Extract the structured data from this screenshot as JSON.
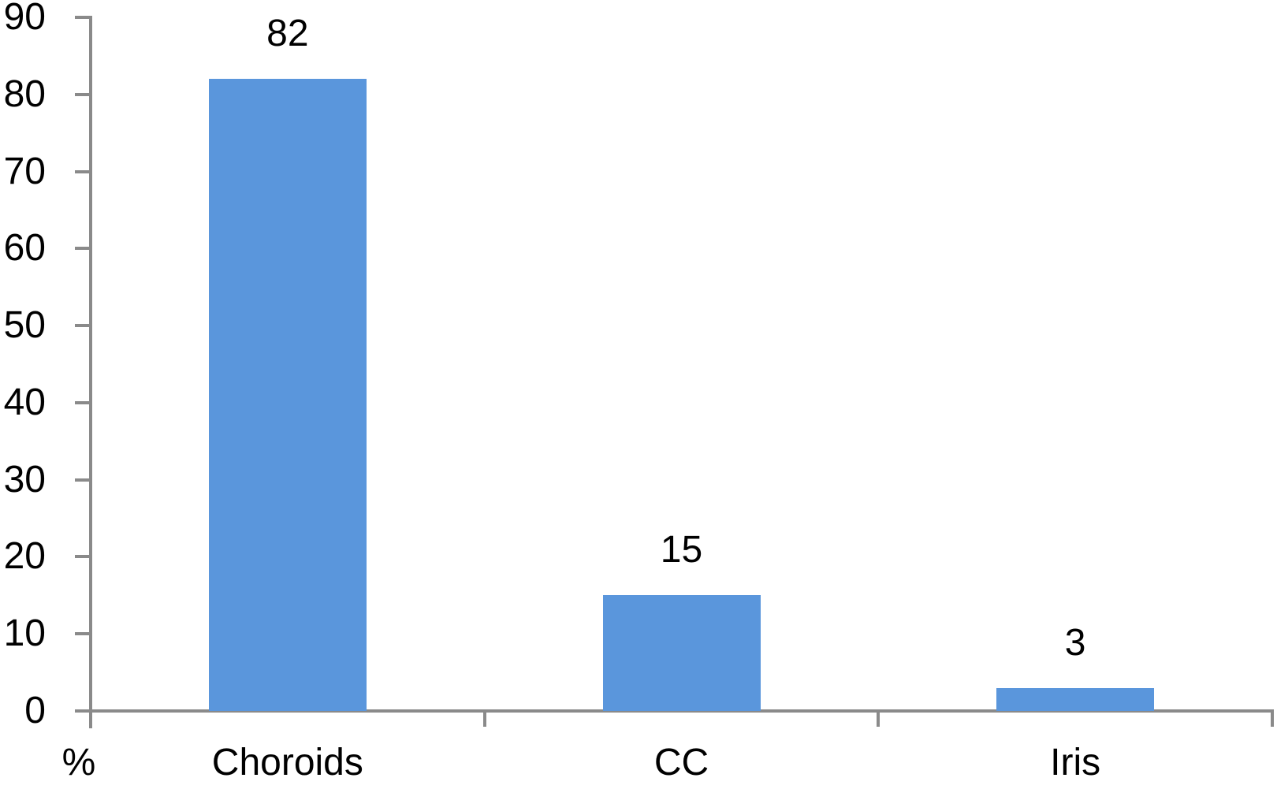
{
  "chart_data": {
    "type": "bar",
    "title": "",
    "categories": [
      "Choroids",
      "CC",
      "Iris"
    ],
    "values": [
      82,
      15,
      3
    ],
    "data_labels": [
      "82",
      "15",
      "3"
    ],
    "unit_label": "%",
    "xlabel": "",
    "ylabel": "%",
    "ylim": [
      0,
      90
    ],
    "ytick_step": 10,
    "ytick_labels": [
      "0",
      "10",
      "20",
      "30",
      "40",
      "50",
      "60",
      "70",
      "80",
      "90"
    ],
    "grid": false,
    "legend": false,
    "bar_color": "#5A96DC",
    "axis_color": "#8A8A8A",
    "text_color": "#000000",
    "background_color": "#FFFFFF"
  }
}
